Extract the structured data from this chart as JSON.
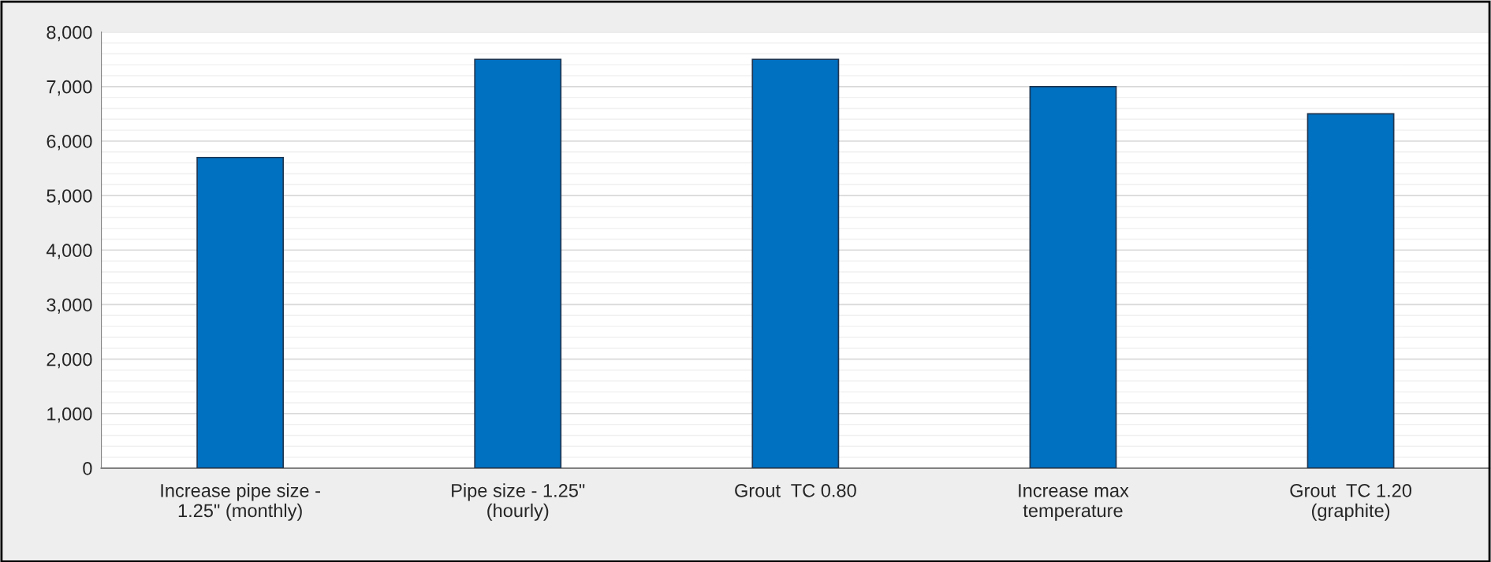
{
  "chart_data": {
    "type": "bar",
    "categories": [
      "Increase pipe size -\n1.25\" (monthly)",
      "Pipe size - 1.25\"\n(hourly)",
      "Grout  TC 0.80",
      "Increase max\ntemperature",
      "Grout  TC 1.20\n(graphite)"
    ],
    "values": [
      5700,
      7500,
      7500,
      7000,
      6500
    ],
    "color": "#0070c0",
    "ylim": [
      0,
      8000
    ],
    "yticks": [
      {
        "value": 0,
        "label": "0"
      },
      {
        "value": 1000,
        "label": "1,000"
      },
      {
        "value": 2000,
        "label": "2,000"
      },
      {
        "value": 3000,
        "label": "3,000"
      },
      {
        "value": 4000,
        "label": "4,000"
      },
      {
        "value": 5000,
        "label": "5,000"
      },
      {
        "value": 6000,
        "label": "6,000"
      },
      {
        "value": 7000,
        "label": "7,000"
      },
      {
        "value": 8000,
        "label": "8,000"
      }
    ],
    "grid": "y"
  }
}
